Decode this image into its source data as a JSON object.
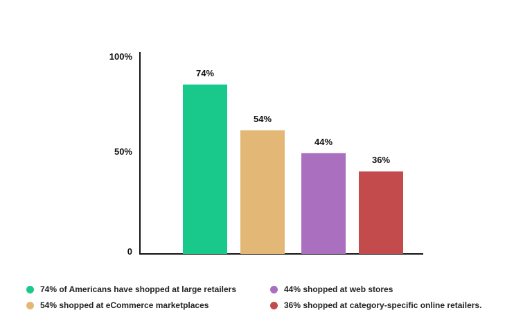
{
  "chart_data": {
    "type": "bar",
    "categories": [
      "74% of Americans have shopped at large retailers",
      "54% shopped at eCommerce marketplaces",
      "44% shopped at web stores",
      "36% shopped at category-specific online retailers."
    ],
    "values": [
      74,
      54,
      44,
      36
    ],
    "data_labels": [
      "74%",
      "54%",
      "44%",
      "36%"
    ],
    "colors": [
      "#19c98c",
      "#e3b776",
      "#ab6fc0",
      "#c44b4b"
    ],
    "ylim": [
      0,
      100
    ],
    "yticks": [
      "0",
      "50%",
      "100%"
    ],
    "ytick_values": [
      0,
      50,
      100
    ],
    "title": "",
    "xlabel": "",
    "ylabel": "",
    "grid": false,
    "legend_position": "bottom"
  }
}
